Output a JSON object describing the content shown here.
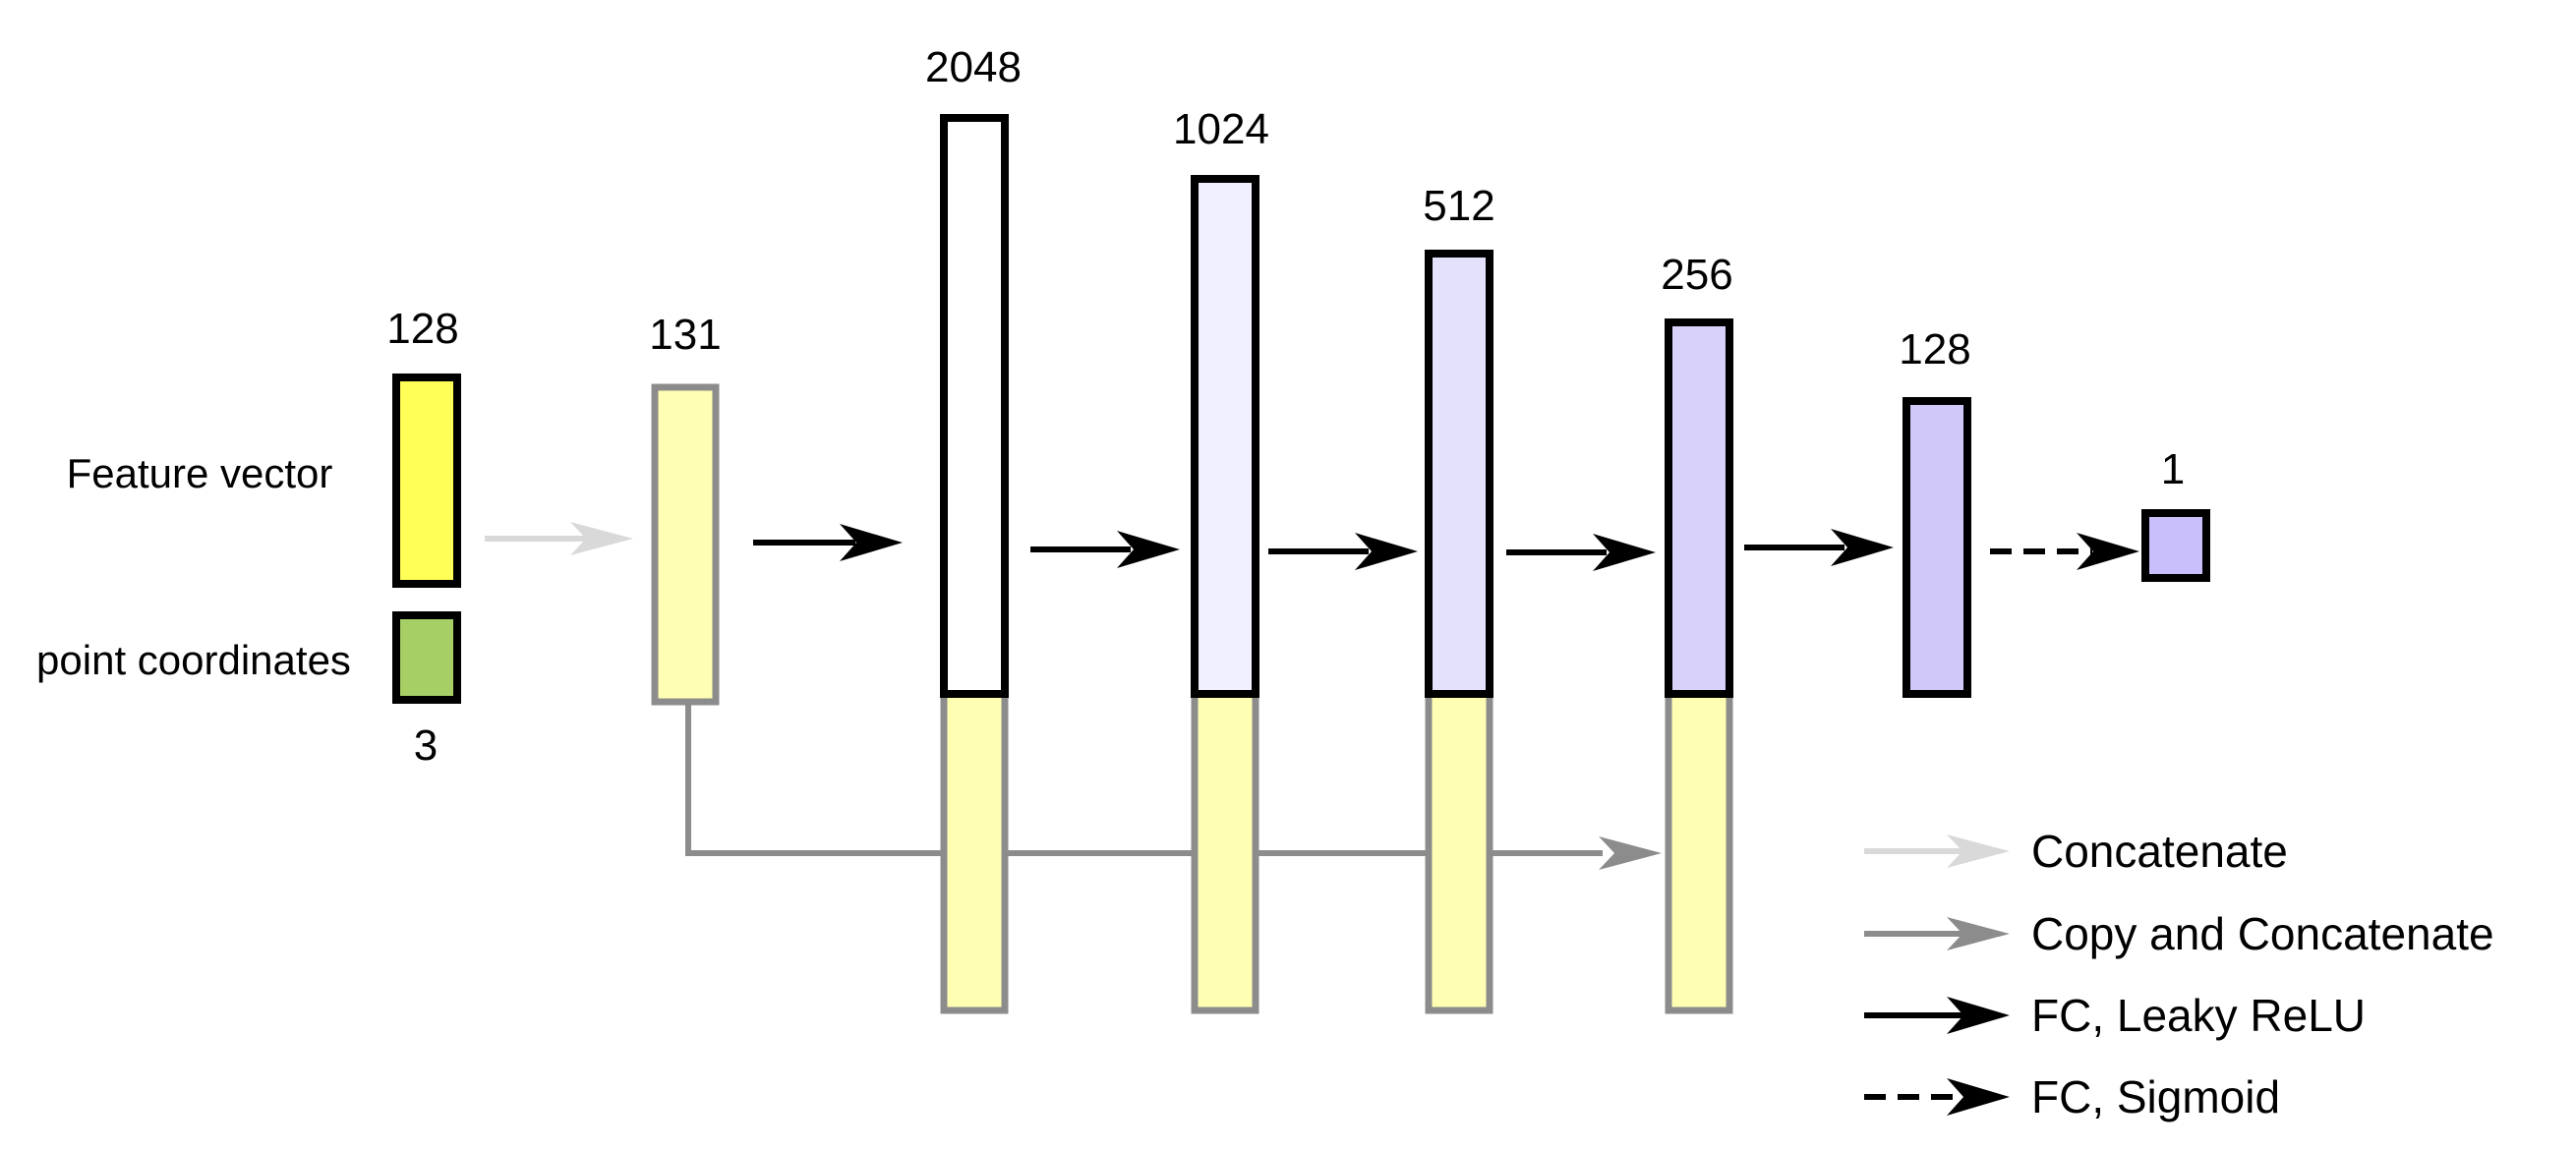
{
  "input": {
    "feature_vector": {
      "label": "Feature vector",
      "size": "128",
      "color": "#ffff57"
    },
    "point_coordinates": {
      "label": "point coordinates",
      "size": "3",
      "color": "#a6cf66"
    }
  },
  "concatenated": {
    "size": "131",
    "color": "#ffffb3"
  },
  "layers": [
    {
      "size": "2048",
      "color": "#ffffff"
    },
    {
      "size": "1024",
      "color": "#f0f0ff"
    },
    {
      "size": "512",
      "color": "#e4e1fd"
    },
    {
      "size": "256",
      "color": "#d8d2fb"
    },
    {
      "size": "128",
      "color": "#d0c8f8"
    }
  ],
  "output": {
    "size": "1",
    "color": "#c9bffa"
  },
  "legend": {
    "concatenate": "Concatenate",
    "copy_concatenate": "Copy and Concatenate",
    "fc_leaky_relu": "FC, Leaky ReLU",
    "fc_sigmoid": "FC, Sigmoid"
  },
  "colors": {
    "concatenate_arrow": "#d9d9d9",
    "copy_arrow": "#8c8c8c",
    "fc_arrow": "#000000",
    "copy_block_fill": "#ffffb3",
    "copy_block_border": "#8c8c8c"
  }
}
